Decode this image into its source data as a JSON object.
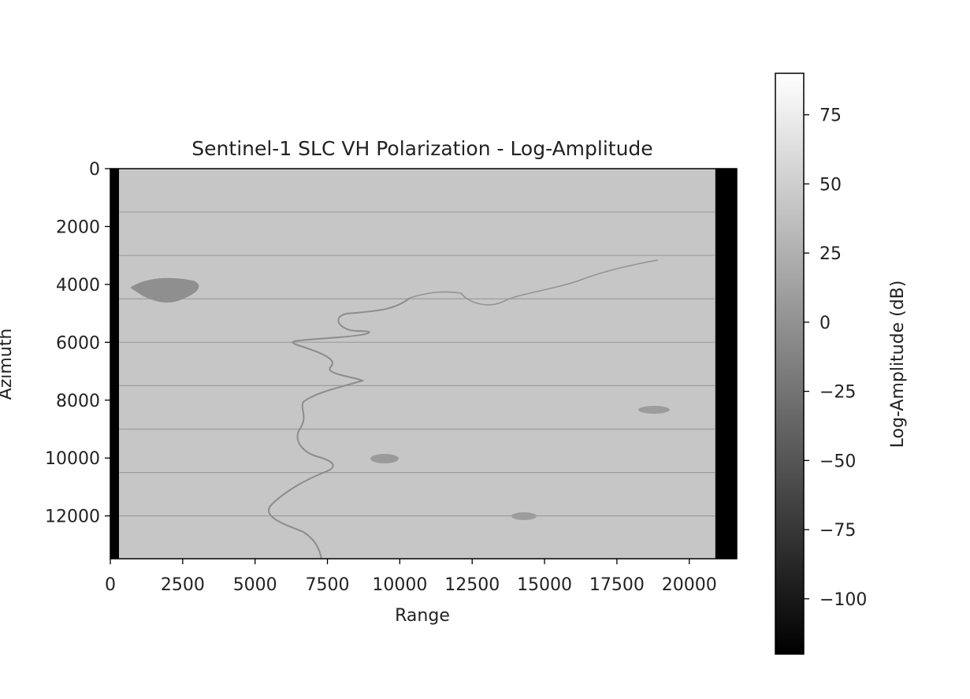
{
  "chart_data": {
    "type": "heatmap",
    "title": "Sentinel-1 SLC VH Polarization - Log-Amplitude",
    "xlabel": "Range",
    "ylabel": "Azimuth",
    "xlim": [
      0,
      21640
    ],
    "ylim": [
      13480,
      0
    ],
    "xticks": [
      0,
      2500,
      5000,
      7500,
      10000,
      12500,
      15000,
      17500,
      20000
    ],
    "xtick_labels": [
      "0",
      "2500",
      "5000",
      "7500",
      "10000",
      "12500",
      "15000",
      "17500",
      "20000"
    ],
    "yticks": [
      0,
      2000,
      4000,
      6000,
      8000,
      10000,
      12000
    ],
    "ytick_labels": [
      "0",
      "2000",
      "4000",
      "6000",
      "8000",
      "10000",
      "12000"
    ],
    "colormap": "gray",
    "colorbar": {
      "label": "Log-Amplitude (dB)",
      "range": [
        -120,
        90
      ],
      "ticks": [
        75,
        50,
        25,
        0,
        -25,
        -50,
        -75,
        -100
      ],
      "tick_labels": [
        "75",
        "50",
        "25",
        "0",
        "−25",
        "−50",
        "−75",
        "−100"
      ]
    },
    "image": {
      "background_value_db": 43,
      "nodata_value_db": -120,
      "valid_range_start": 300,
      "valid_range_end": 20900,
      "burst_boundaries_azimuth": [
        1500,
        3000,
        4500,
        6000,
        7500,
        9000,
        10500,
        12000
      ]
    },
    "grid": false
  }
}
